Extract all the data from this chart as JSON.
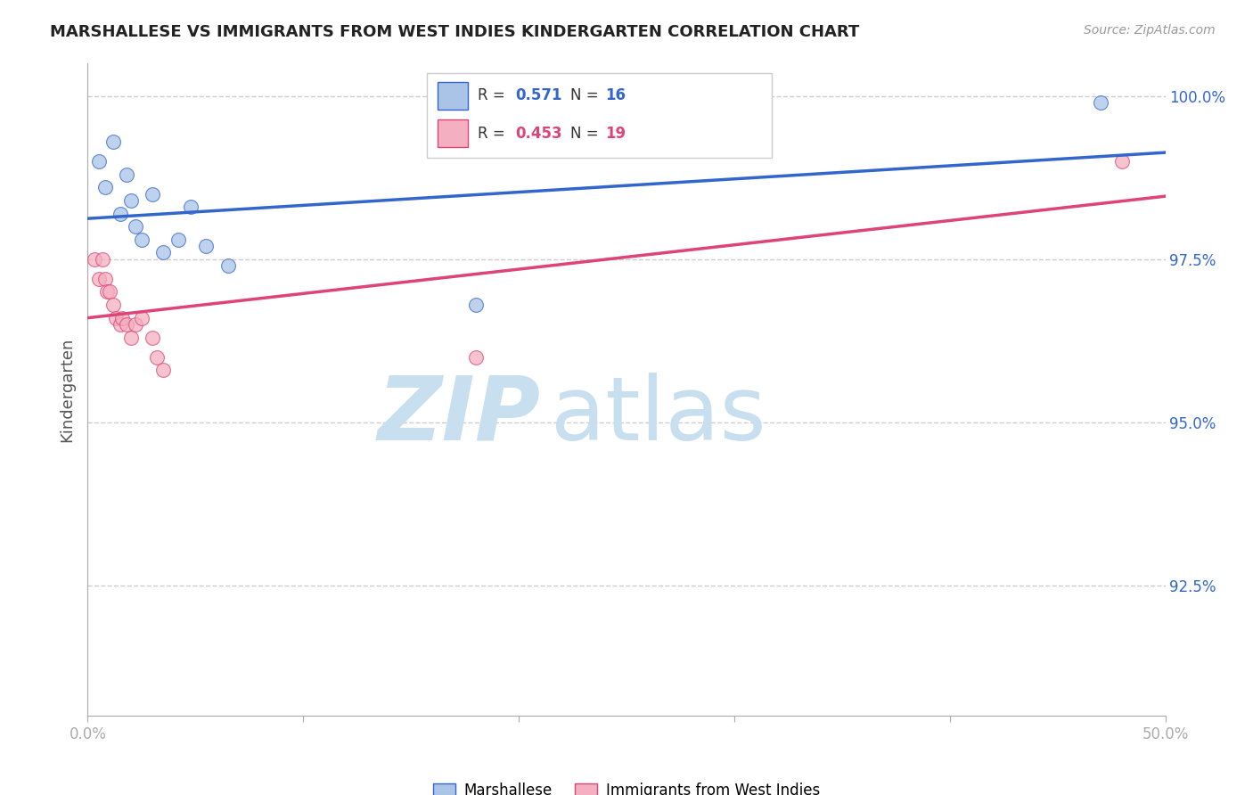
{
  "title": "MARSHALLESE VS IMMIGRANTS FROM WEST INDIES KINDERGARTEN CORRELATION CHART",
  "source_text": "Source: ZipAtlas.com",
  "ylabel": "Kindergarten",
  "xlim": [
    0.0,
    0.5
  ],
  "ylim": [
    0.905,
    1.005
  ],
  "yticks": [
    0.925,
    0.95,
    0.975,
    1.0
  ],
  "ytick_labels": [
    "92.5%",
    "95.0%",
    "97.5%",
    "100.0%"
  ],
  "xticks": [
    0.0,
    0.1,
    0.2,
    0.3,
    0.4,
    0.5
  ],
  "xtick_labels": [
    "0.0%",
    "",
    "",
    "",
    "",
    "50.0%"
  ],
  "legend_R_blue": "0.571",
  "legend_N_blue": "16",
  "legend_R_pink": "0.453",
  "legend_N_pink": "19",
  "blue_scatter_x": [
    0.005,
    0.008,
    0.012,
    0.015,
    0.018,
    0.02,
    0.022,
    0.025,
    0.03,
    0.035,
    0.042,
    0.048,
    0.055,
    0.065,
    0.18,
    0.47
  ],
  "blue_scatter_y": [
    0.99,
    0.986,
    0.993,
    0.982,
    0.988,
    0.984,
    0.98,
    0.978,
    0.985,
    0.976,
    0.978,
    0.983,
    0.977,
    0.974,
    0.968,
    0.999
  ],
  "pink_scatter_x": [
    0.003,
    0.005,
    0.007,
    0.008,
    0.009,
    0.01,
    0.012,
    0.013,
    0.015,
    0.016,
    0.018,
    0.02,
    0.022,
    0.025,
    0.03,
    0.032,
    0.035,
    0.18,
    0.48
  ],
  "pink_scatter_y": [
    0.975,
    0.972,
    0.975,
    0.972,
    0.97,
    0.97,
    0.968,
    0.966,
    0.965,
    0.966,
    0.965,
    0.963,
    0.965,
    0.966,
    0.963,
    0.96,
    0.958,
    0.96,
    0.99
  ],
  "blue_color": "#aac4e8",
  "pink_color": "#f4afc0",
  "blue_line_color": "#3366cc",
  "pink_line_color": "#dd4477",
  "marker_size": 130,
  "background_color": "#ffffff",
  "watermark_zip": "ZIP",
  "watermark_atlas": "atlas",
  "watermark_color_zip": "#c8dff0",
  "watermark_color_atlas": "#c8dff0",
  "grid_color": "#cccccc",
  "grid_style": "--",
  "bottom_legend_blue_label": "Marshallese",
  "bottom_legend_pink_label": "Immigrants from West Indies"
}
